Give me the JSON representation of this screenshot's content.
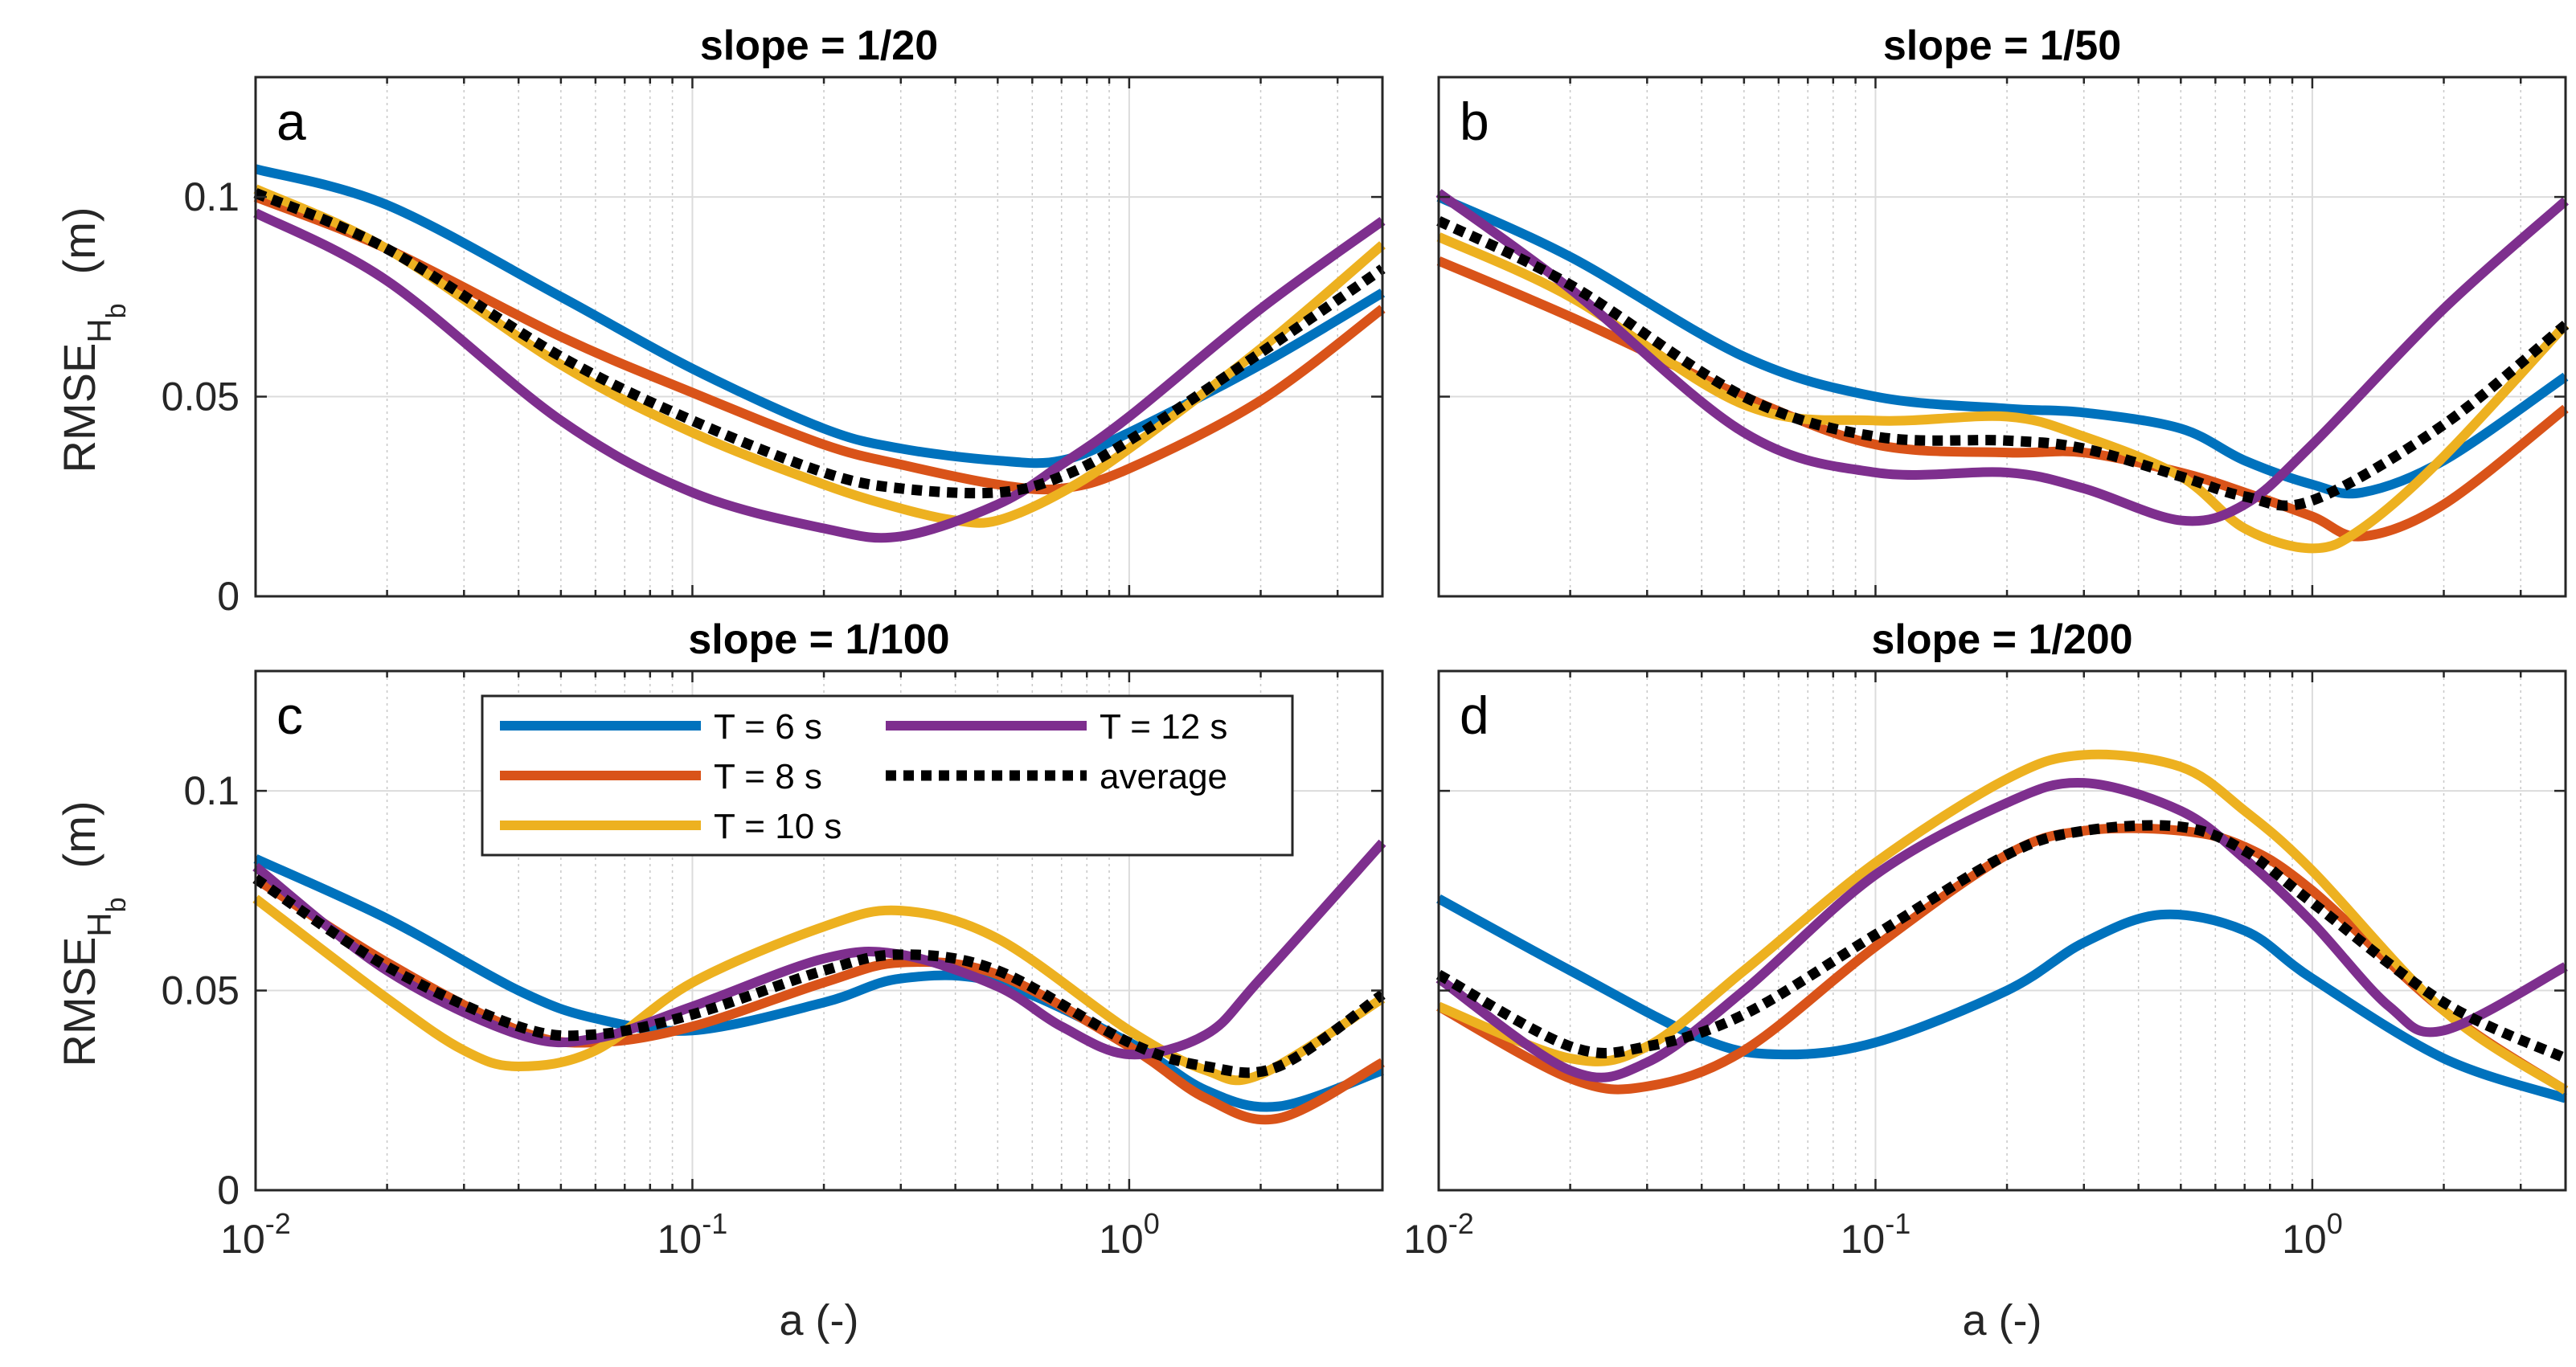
{
  "chart_data": [
    {
      "type": "line",
      "title": "slope = 1/20",
      "panel_label": "a",
      "xlabel": "",
      "ylabel": "RMSE",
      "ylabel_sub": "H",
      "ylabel_subsub": "b",
      "ylabel_unit": "(m)",
      "x_scale": "log",
      "xlim": [
        0.01,
        3.8
      ],
      "ylim": [
        0,
        0.13
      ],
      "yticks": [
        0,
        0.05,
        0.1
      ],
      "ytick_labels": [
        "0",
        "0.05",
        "0.1"
      ],
      "xtick_labels": [],
      "grid": true,
      "series": [
        {
          "name": "T = 6 s",
          "color": "#0072BD",
          "x": [
            0.01,
            0.02,
            0.05,
            0.1,
            0.2,
            0.3,
            0.5,
            0.7,
            1,
            2,
            3.8
          ],
          "y": [
            0.107,
            0.098,
            0.075,
            0.057,
            0.042,
            0.037,
            0.034,
            0.034,
            0.041,
            0.058,
            0.076
          ]
        },
        {
          "name": "T = 8 s",
          "color": "#D95319",
          "x": [
            0.01,
            0.02,
            0.05,
            0.1,
            0.2,
            0.3,
            0.5,
            0.7,
            1,
            2,
            3.8
          ],
          "y": [
            0.1,
            0.087,
            0.065,
            0.051,
            0.038,
            0.033,
            0.028,
            0.027,
            0.032,
            0.049,
            0.072
          ]
        },
        {
          "name": "T = 10 s",
          "color": "#EDB120",
          "x": [
            0.01,
            0.02,
            0.05,
            0.1,
            0.2,
            0.3,
            0.4,
            0.5,
            0.7,
            1,
            2,
            3.8
          ],
          "y": [
            0.102,
            0.087,
            0.058,
            0.041,
            0.028,
            0.022,
            0.019,
            0.019,
            0.026,
            0.037,
            0.062,
            0.088
          ]
        },
        {
          "name": "T = 12 s",
          "color": "#7E2F8E",
          "x": [
            0.01,
            0.02,
            0.05,
            0.1,
            0.2,
            0.3,
            0.5,
            0.7,
            1,
            2,
            3.8
          ],
          "y": [
            0.096,
            0.079,
            0.044,
            0.026,
            0.017,
            0.015,
            0.023,
            0.033,
            0.045,
            0.072,
            0.094
          ]
        },
        {
          "name": "average",
          "color": "#000000",
          "dotted": true,
          "x": [
            0.01,
            0.02,
            0.05,
            0.1,
            0.2,
            0.3,
            0.5,
            0.7,
            1,
            2,
            3.8
          ],
          "y": [
            0.101,
            0.087,
            0.06,
            0.044,
            0.031,
            0.027,
            0.026,
            0.03,
            0.039,
            0.061,
            0.082
          ]
        }
      ]
    },
    {
      "type": "line",
      "title": "slope = 1/50",
      "panel_label": "b",
      "xlabel": "",
      "x_scale": "log",
      "xlim": [
        0.01,
        3.8
      ],
      "ylim": [
        0,
        0.13
      ],
      "yticks": [
        0,
        0.05,
        0.1
      ],
      "ytick_labels": [],
      "xtick_labels": [],
      "grid": true,
      "series": [
        {
          "name": "T = 6 s",
          "color": "#0072BD",
          "x": [
            0.01,
            0.02,
            0.05,
            0.1,
            0.2,
            0.3,
            0.5,
            0.7,
            1,
            1.3,
            2,
            3.8
          ],
          "y": [
            0.1,
            0.085,
            0.06,
            0.05,
            0.047,
            0.046,
            0.042,
            0.034,
            0.028,
            0.026,
            0.034,
            0.055
          ]
        },
        {
          "name": "T = 8 s",
          "color": "#D95319",
          "x": [
            0.01,
            0.02,
            0.05,
            0.1,
            0.2,
            0.3,
            0.5,
            0.7,
            1,
            1.3,
            2,
            3.8
          ],
          "y": [
            0.084,
            0.07,
            0.05,
            0.038,
            0.036,
            0.036,
            0.031,
            0.026,
            0.02,
            0.015,
            0.023,
            0.047
          ]
        },
        {
          "name": "T = 10 s",
          "color": "#EDB120",
          "x": [
            0.01,
            0.02,
            0.05,
            0.1,
            0.2,
            0.3,
            0.5,
            0.7,
            1,
            1.3,
            2,
            3.8
          ],
          "y": [
            0.09,
            0.075,
            0.048,
            0.044,
            0.045,
            0.04,
            0.03,
            0.017,
            0.012,
            0.017,
            0.035,
            0.068
          ]
        },
        {
          "name": "T = 12 s",
          "color": "#7E2F8E",
          "x": [
            0.01,
            0.02,
            0.05,
            0.1,
            0.2,
            0.3,
            0.5,
            0.7,
            1,
            2,
            3.8
          ],
          "y": [
            0.101,
            0.077,
            0.041,
            0.031,
            0.031,
            0.027,
            0.019,
            0.023,
            0.038,
            0.072,
            0.099
          ]
        },
        {
          "name": "average",
          "color": "#000000",
          "dotted": true,
          "x": [
            0.01,
            0.02,
            0.05,
            0.1,
            0.2,
            0.3,
            0.5,
            0.7,
            1,
            2,
            3.8
          ],
          "y": [
            0.094,
            0.078,
            0.05,
            0.04,
            0.039,
            0.037,
            0.03,
            0.025,
            0.024,
            0.043,
            0.068
          ]
        }
      ]
    },
    {
      "type": "line",
      "title": "slope = 1/100",
      "panel_label": "c",
      "xlabel": "a (-)",
      "ylabel": "RMSE",
      "ylabel_sub": "H",
      "ylabel_subsub": "b",
      "ylabel_unit": "(m)",
      "x_scale": "log",
      "xlim": [
        0.01,
        3.8
      ],
      "ylim": [
        0,
        0.13
      ],
      "yticks": [
        0,
        0.05,
        0.1
      ],
      "ytick_labels": [
        "0",
        "0.05",
        "0.1"
      ],
      "xticks": [
        0.01,
        0.1,
        1
      ],
      "xtick_labels": [
        {
          "base": "10",
          "exp": "-2"
        },
        {
          "base": "10",
          "exp": "-1"
        },
        {
          "base": "10",
          "exp": "0"
        }
      ],
      "grid": true,
      "series": [
        {
          "name": "T = 6 s",
          "color": "#0072BD",
          "x": [
            0.01,
            0.02,
            0.04,
            0.06,
            0.1,
            0.2,
            0.3,
            0.5,
            1,
            1.5,
            2.2,
            3.8
          ],
          "y": [
            0.083,
            0.068,
            0.05,
            0.043,
            0.04,
            0.047,
            0.053,
            0.052,
            0.037,
            0.025,
            0.021,
            0.03
          ]
        },
        {
          "name": "T = 8 s",
          "color": "#D95319",
          "x": [
            0.01,
            0.02,
            0.04,
            0.06,
            0.1,
            0.2,
            0.3,
            0.5,
            1,
            1.5,
            2.2,
            3.8
          ],
          "y": [
            0.078,
            0.057,
            0.04,
            0.037,
            0.041,
            0.052,
            0.057,
            0.054,
            0.036,
            0.023,
            0.018,
            0.032
          ]
        },
        {
          "name": "T = 10 s",
          "color": "#EDB120",
          "x": [
            0.01,
            0.02,
            0.03,
            0.04,
            0.06,
            0.1,
            0.2,
            0.3,
            0.5,
            1,
            1.5,
            2,
            3.8
          ],
          "y": [
            0.073,
            0.048,
            0.035,
            0.031,
            0.035,
            0.052,
            0.066,
            0.07,
            0.063,
            0.04,
            0.03,
            0.029,
            0.048
          ]
        },
        {
          "name": "T = 12 s",
          "color": "#7E2F8E",
          "x": [
            0.01,
            0.02,
            0.04,
            0.06,
            0.1,
            0.2,
            0.3,
            0.5,
            0.7,
            1,
            1.5,
            2,
            3.8
          ],
          "y": [
            0.081,
            0.055,
            0.039,
            0.038,
            0.046,
            0.058,
            0.059,
            0.051,
            0.041,
            0.034,
            0.039,
            0.053,
            0.087
          ]
        },
        {
          "name": "average",
          "color": "#000000",
          "dotted": true,
          "x": [
            0.01,
            0.02,
            0.04,
            0.06,
            0.1,
            0.2,
            0.3,
            0.5,
            1,
            1.5,
            2.2,
            3.8
          ],
          "y": [
            0.078,
            0.056,
            0.041,
            0.039,
            0.044,
            0.055,
            0.059,
            0.055,
            0.037,
            0.031,
            0.031,
            0.049
          ]
        }
      ]
    },
    {
      "type": "line",
      "title": "slope = 1/200",
      "panel_label": "d",
      "xlabel": "a (-)",
      "x_scale": "log",
      "xlim": [
        0.01,
        3.8
      ],
      "ylim": [
        0,
        0.13
      ],
      "yticks": [
        0,
        0.05,
        0.1
      ],
      "ytick_labels": [],
      "xticks": [
        0.01,
        0.1,
        1
      ],
      "xtick_labels": [
        {
          "base": "10",
          "exp": "-2"
        },
        {
          "base": "10",
          "exp": "-1"
        },
        {
          "base": "10",
          "exp": "0"
        }
      ],
      "grid": true,
      "series": [
        {
          "name": "T = 6 s",
          "color": "#0072BD",
          "x": [
            0.01,
            0.02,
            0.04,
            0.06,
            0.1,
            0.2,
            0.3,
            0.45,
            0.7,
            1,
            2,
            3.8
          ],
          "y": [
            0.073,
            0.055,
            0.038,
            0.034,
            0.037,
            0.05,
            0.062,
            0.069,
            0.065,
            0.053,
            0.033,
            0.023
          ]
        },
        {
          "name": "T = 8 s",
          "color": "#D95319",
          "x": [
            0.01,
            0.02,
            0.03,
            0.05,
            0.1,
            0.2,
            0.3,
            0.5,
            0.7,
            1,
            2,
            3.8
          ],
          "y": [
            0.046,
            0.028,
            0.026,
            0.035,
            0.061,
            0.084,
            0.09,
            0.09,
            0.086,
            0.075,
            0.045,
            0.025
          ]
        },
        {
          "name": "T = 10 s",
          "color": "#EDB120",
          "x": [
            0.01,
            0.02,
            0.03,
            0.05,
            0.1,
            0.2,
            0.3,
            0.5,
            0.7,
            1,
            2,
            3.8
          ],
          "y": [
            0.046,
            0.033,
            0.036,
            0.055,
            0.082,
            0.103,
            0.109,
            0.106,
            0.095,
            0.08,
            0.045,
            0.025
          ]
        },
        {
          "name": "T = 12 s",
          "color": "#7E2F8E",
          "x": [
            0.01,
            0.02,
            0.03,
            0.05,
            0.1,
            0.2,
            0.3,
            0.5,
            0.7,
            1,
            1.5,
            2,
            3.8
          ],
          "y": [
            0.053,
            0.03,
            0.032,
            0.05,
            0.079,
            0.097,
            0.102,
            0.095,
            0.083,
            0.067,
            0.046,
            0.04,
            0.056
          ]
        },
        {
          "name": "average",
          "color": "#000000",
          "dotted": true,
          "x": [
            0.01,
            0.02,
            0.03,
            0.05,
            0.1,
            0.2,
            0.3,
            0.5,
            0.7,
            1,
            2,
            3.8
          ],
          "y": [
            0.054,
            0.036,
            0.036,
            0.044,
            0.064,
            0.084,
            0.09,
            0.091,
            0.085,
            0.072,
            0.047,
            0.033
          ]
        }
      ]
    }
  ],
  "legend": {
    "placement": "upper-middle of panel c",
    "entries": [
      {
        "label": "T = 6 s",
        "color": "#0072BD"
      },
      {
        "label": "T = 8 s",
        "color": "#D95319"
      },
      {
        "label": "T = 10 s",
        "color": "#EDB120"
      },
      {
        "label": "T = 12 s",
        "color": "#7E2F8E"
      },
      {
        "label": "average",
        "color": "#000000",
        "dotted": true
      }
    ]
  }
}
